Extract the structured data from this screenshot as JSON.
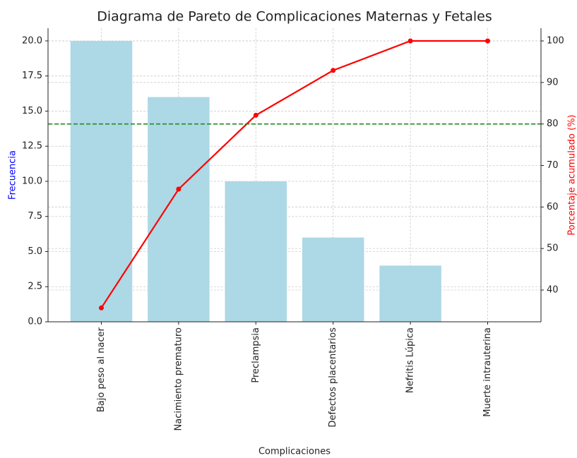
{
  "chart_data": {
    "type": "bar",
    "title": "Diagrama de Pareto de Complicaciones Maternas y Fetales",
    "x_label": "Complicaciones",
    "y_label": "Frecuencia",
    "y2_label": "Porcentaje acumulado (%)",
    "categories": [
      "Bajo peso al nacer",
      "Nacimiento prematuro",
      "Preclampsia",
      "Defectos placentarios",
      "Nefritis Lúpica",
      "Muerte intrauterina"
    ],
    "series": [
      {
        "type": "bar",
        "color": "#add8e6",
        "values": [
          20,
          16,
          10,
          6,
          4,
          0
        ]
      },
      {
        "type": "line",
        "axis": "y2",
        "color": "#ff0000",
        "values": [
          35.7,
          64.3,
          82.1,
          92.9,
          100,
          100
        ]
      }
    ],
    "threshold": {
      "value": 80,
      "axis": "y2",
      "color": "#228b22"
    },
    "ylim": [
      0,
      20.9
    ],
    "yticks": [
      {
        "value": 0,
        "label": "0.0"
      },
      2.5,
      {
        "value": 5,
        "label": "5.0"
      },
      7.5,
      {
        "value": 10,
        "label": "10.0"
      },
      12.5,
      {
        "value": 15,
        "label": "15.0"
      },
      17.5,
      {
        "value": 20,
        "label": "20.0"
      }
    ],
    "y2lim": [
      32.35,
      103.06
    ],
    "y2ticks": [
      40,
      50,
      60,
      70,
      80,
      90,
      100
    ],
    "grid": true
  }
}
